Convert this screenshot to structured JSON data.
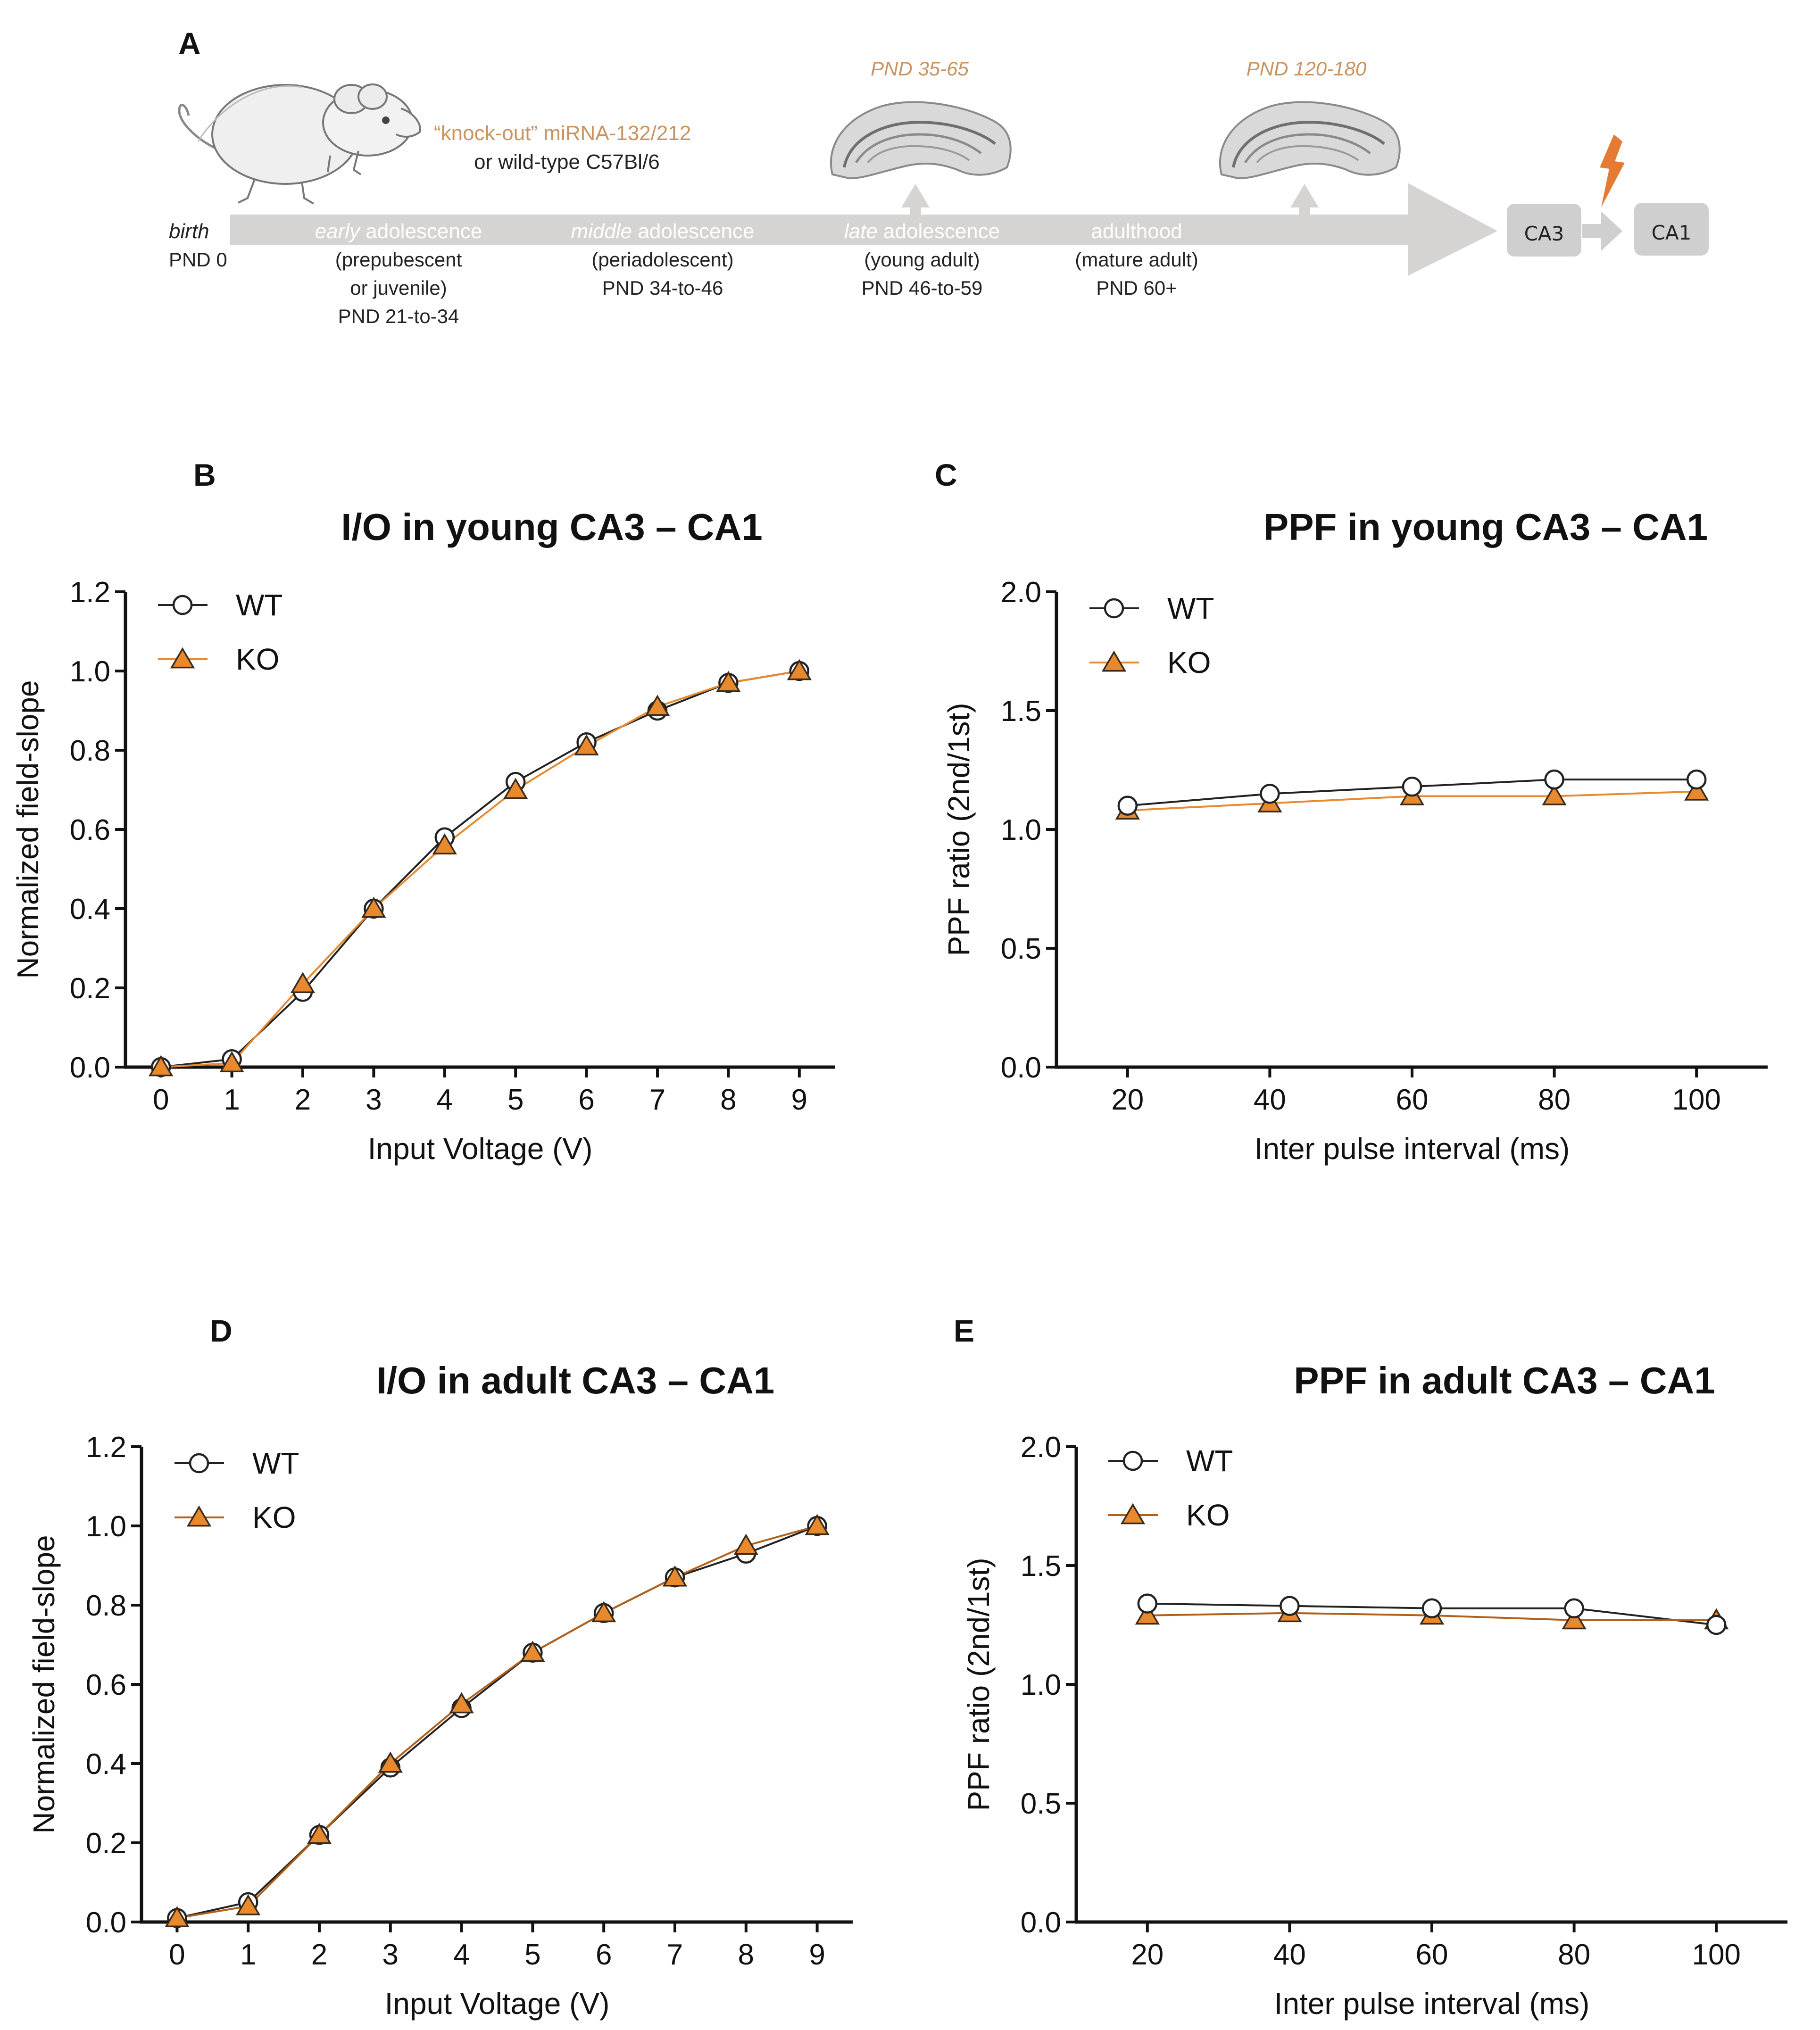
{
  "figure": {
    "panel_a": {
      "letter": "A",
      "genotype_ko": "“knock-out” miRNA-132/212",
      "genotype_wt": "or wild-type C57Bl/6",
      "slice_label_1": "PND 35-65",
      "slice_label_2": "PND 120-180",
      "ca3": "CA3",
      "ca1": "CA1",
      "birth": "birth",
      "birth_pnd": "PND 0",
      "stage_early_em": "early",
      "stage_early_rest": " adolescence",
      "stage_early_sub1": "(prepubescent",
      "stage_early_sub2": "or juvenile)",
      "stage_early_pnd": "PND 21-to-34",
      "stage_middle_em": "middle",
      "stage_middle_rest": " adolescence",
      "stage_middle_sub1": "(periadolescent)",
      "stage_middle_pnd": "PND 34-to-46",
      "stage_late_em": "late",
      "stage_late_rest": " adolescence",
      "stage_late_sub1": "(young adult)",
      "stage_late_pnd": "PND 46-to-59",
      "stage_adult": "adulthood",
      "stage_adult_sub1": "(mature adult)",
      "stage_adult_pnd": "PND 60+"
    },
    "colors": {
      "wt": "#222222",
      "ko": "#e8892e",
      "ko_dark": "#b0601a",
      "arrow": "#d6d3d3",
      "accent": "#c8935f",
      "bolt": "#e57b32"
    }
  },
  "chart_data": [
    {
      "panel": "B",
      "type": "line",
      "title": "I/O in young CA3 – CA1",
      "xlabel": "Input Voltage (V)",
      "ylabel": "Normalized field-slope",
      "xlim": [
        -0.5,
        9.5
      ],
      "ylim": [
        0,
        1.2
      ],
      "xticks": [
        "0",
        "1",
        "2",
        "3",
        "4",
        "5",
        "6",
        "7",
        "8",
        "9"
      ],
      "yticks": [
        "0.0",
        "0.2",
        "0.4",
        "0.6",
        "0.8",
        "1.0",
        "1.2"
      ],
      "legend": [
        "WT",
        "KO"
      ],
      "series": [
        {
          "name": "WT",
          "x": [
            0,
            1,
            2,
            3,
            4,
            5,
            6,
            7,
            8,
            9
          ],
          "values": [
            0.0,
            0.02,
            0.19,
            0.4,
            0.58,
            0.72,
            0.82,
            0.9,
            0.97,
            1.0
          ]
        },
        {
          "name": "KO",
          "x": [
            0,
            1,
            2,
            3,
            4,
            5,
            6,
            7,
            8,
            9
          ],
          "values": [
            0.0,
            0.01,
            0.21,
            0.4,
            0.56,
            0.7,
            0.81,
            0.91,
            0.97,
            1.0
          ]
        }
      ]
    },
    {
      "panel": "C",
      "type": "line",
      "title": "PPF in young CA3 – CA1",
      "xlabel": "Inter pulse interval (ms)",
      "ylabel": "PPF ratio (2nd/1st)",
      "xlim": [
        10,
        110
      ],
      "ylim": [
        0,
        2.0
      ],
      "xticks": [
        "20",
        "40",
        "60",
        "80",
        "100"
      ],
      "yticks": [
        "0.0",
        "0.5",
        "1.0",
        "1.5",
        "2.0"
      ],
      "legend": [
        "WT",
        "KO"
      ],
      "series": [
        {
          "name": "WT",
          "x": [
            20,
            40,
            60,
            80,
            100
          ],
          "values": [
            1.1,
            1.15,
            1.18,
            1.21,
            1.21
          ]
        },
        {
          "name": "KO",
          "x": [
            20,
            40,
            60,
            80,
            100
          ],
          "values": [
            1.08,
            1.11,
            1.14,
            1.14,
            1.16
          ]
        }
      ]
    },
    {
      "panel": "D",
      "type": "line",
      "title": "I/O in adult  CA3 – CA1",
      "xlabel": "Input Voltage (V)",
      "ylabel": "Normalized field-slope",
      "xlim": [
        -0.5,
        9.5
      ],
      "ylim": [
        0,
        1.2
      ],
      "xticks": [
        "0",
        "1",
        "2",
        "3",
        "4",
        "5",
        "6",
        "7",
        "8",
        "9"
      ],
      "yticks": [
        "0.0",
        "0.2",
        "0.4",
        "0.6",
        "0.8",
        "1.0",
        "1.2"
      ],
      "legend": [
        "WT",
        "KO"
      ],
      "series": [
        {
          "name": "WT",
          "x": [
            0,
            1,
            2,
            3,
            4,
            5,
            6,
            7,
            8,
            9
          ],
          "values": [
            0.01,
            0.05,
            0.22,
            0.39,
            0.54,
            0.68,
            0.78,
            0.87,
            0.93,
            1.0
          ]
        },
        {
          "name": "KO",
          "x": [
            0,
            1,
            2,
            3,
            4,
            5,
            6,
            7,
            8,
            9
          ],
          "values": [
            0.01,
            0.04,
            0.22,
            0.4,
            0.55,
            0.68,
            0.78,
            0.87,
            0.95,
            1.0
          ]
        }
      ]
    },
    {
      "panel": "E",
      "type": "line",
      "title": "PPF in adult  CA3 – CA1",
      "xlabel": "Inter pulse interval (ms)",
      "ylabel": "PPF ratio (2nd/1st)",
      "xlim": [
        10,
        110
      ],
      "ylim": [
        0,
        2.0
      ],
      "xticks": [
        "20",
        "40",
        "60",
        "80",
        "100"
      ],
      "yticks": [
        "0.0",
        "0.5",
        "1.0",
        "1.5",
        "2.0"
      ],
      "legend": [
        "WT",
        "KO"
      ],
      "series": [
        {
          "name": "WT",
          "x": [
            20,
            40,
            60,
            80,
            100
          ],
          "values": [
            1.34,
            1.33,
            1.32,
            1.32,
            1.25
          ]
        },
        {
          "name": "KO",
          "x": [
            20,
            40,
            60,
            80,
            100
          ],
          "values": [
            1.29,
            1.3,
            1.29,
            1.27,
            1.27
          ]
        }
      ]
    }
  ]
}
